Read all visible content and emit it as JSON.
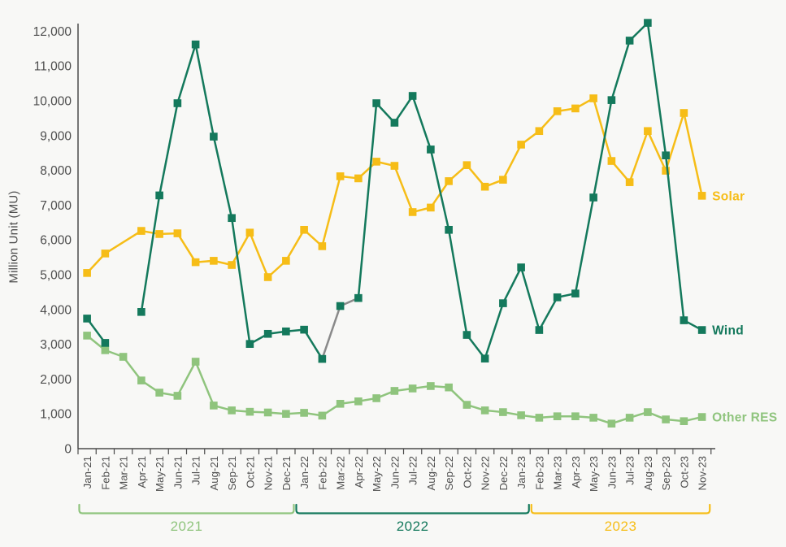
{
  "chart_data": {
    "type": "line",
    "title": "",
    "ylabel": "Million Unit (MU)",
    "xlabel": "",
    "ylim": [
      0,
      12000
    ],
    "ytick_step": 1000,
    "grid": false,
    "background": "#F8F8F6",
    "axis_color": "#4A4A4A",
    "text_color": "#4D4D4D",
    "categories": [
      "Jan-21",
      "Feb-21",
      "Mar-21",
      "Apr-21",
      "May-21",
      "Jun-21",
      "Jul-21",
      "Aug-21",
      "Sep-21",
      "Oct-21",
      "Nov-21",
      "Dec-21",
      "Jan-22",
      "Feb-22",
      "Mar-22",
      "Apr-22",
      "May-22",
      "Jun-22",
      "Jul-22",
      "Aug-22",
      "Sep-22",
      "Oct-22",
      "Nov-22",
      "Dec-22",
      "Jan-23",
      "Feb-23",
      "Mar-23",
      "Apr-23",
      "May-23",
      "Jun-23",
      "Jul-23",
      "Aug-23",
      "Sep-23",
      "Oct-23",
      "Nov-23"
    ],
    "series": [
      {
        "name": "Other RES",
        "label": "Other RES",
        "color": "#8FC47D",
        "connect_gaps": true,
        "values": [
          3250,
          2830,
          2640,
          1960,
          1610,
          1520,
          2500,
          1240,
          1100,
          1060,
          1040,
          1000,
          1030,
          950,
          1290,
          1360,
          1450,
          1660,
          1730,
          1800,
          1760,
          1260,
          1100,
          1050,
          960,
          890,
          930,
          930,
          890,
          720,
          890,
          1050,
          840,
          790,
          910
        ]
      },
      {
        "name": "Solar",
        "label": "Solar",
        "color": "#F6BD17",
        "connect_gaps": true,
        "values": [
          5050,
          5610,
          null,
          6260,
          6170,
          6190,
          5360,
          5400,
          5280,
          6210,
          4930,
          5400,
          6290,
          5820,
          7830,
          7770,
          8250,
          8130,
          6800,
          6930,
          7690,
          8150,
          7530,
          7730,
          8740,
          9130,
          9700,
          9780,
          10070,
          8270,
          7660,
          9130,
          7990,
          9650,
          7270
        ]
      },
      {
        "name": "Wind",
        "label": "Wind",
        "color": "#14795C",
        "connect_gaps": false,
        "gray_color": "#8A8A8A",
        "gray_segments": [
          [
            "Feb-22",
            "Mar-22"
          ],
          [
            "Mar-22",
            "Apr-22"
          ]
        ],
        "values": [
          3740,
          3040,
          null,
          3930,
          7280,
          9930,
          11620,
          8970,
          6630,
          3010,
          3300,
          3370,
          3420,
          2580,
          4100,
          4330,
          9930,
          9370,
          10140,
          8600,
          6290,
          3270,
          2590,
          4180,
          5210,
          3410,
          4350,
          4460,
          7220,
          10020,
          11730,
          12240,
          8430,
          3690,
          3410
        ]
      }
    ],
    "year_groups": [
      {
        "label": "2021",
        "from": "Jan-21",
        "to": "Dec-21",
        "color": "#8FC47D"
      },
      {
        "label": "2022",
        "from": "Jan-22",
        "to": "Jan-23",
        "color": "#14795C"
      },
      {
        "label": "2023",
        "from": "Feb-23",
        "to": "Nov-23",
        "color": "#F6BD17"
      }
    ]
  }
}
